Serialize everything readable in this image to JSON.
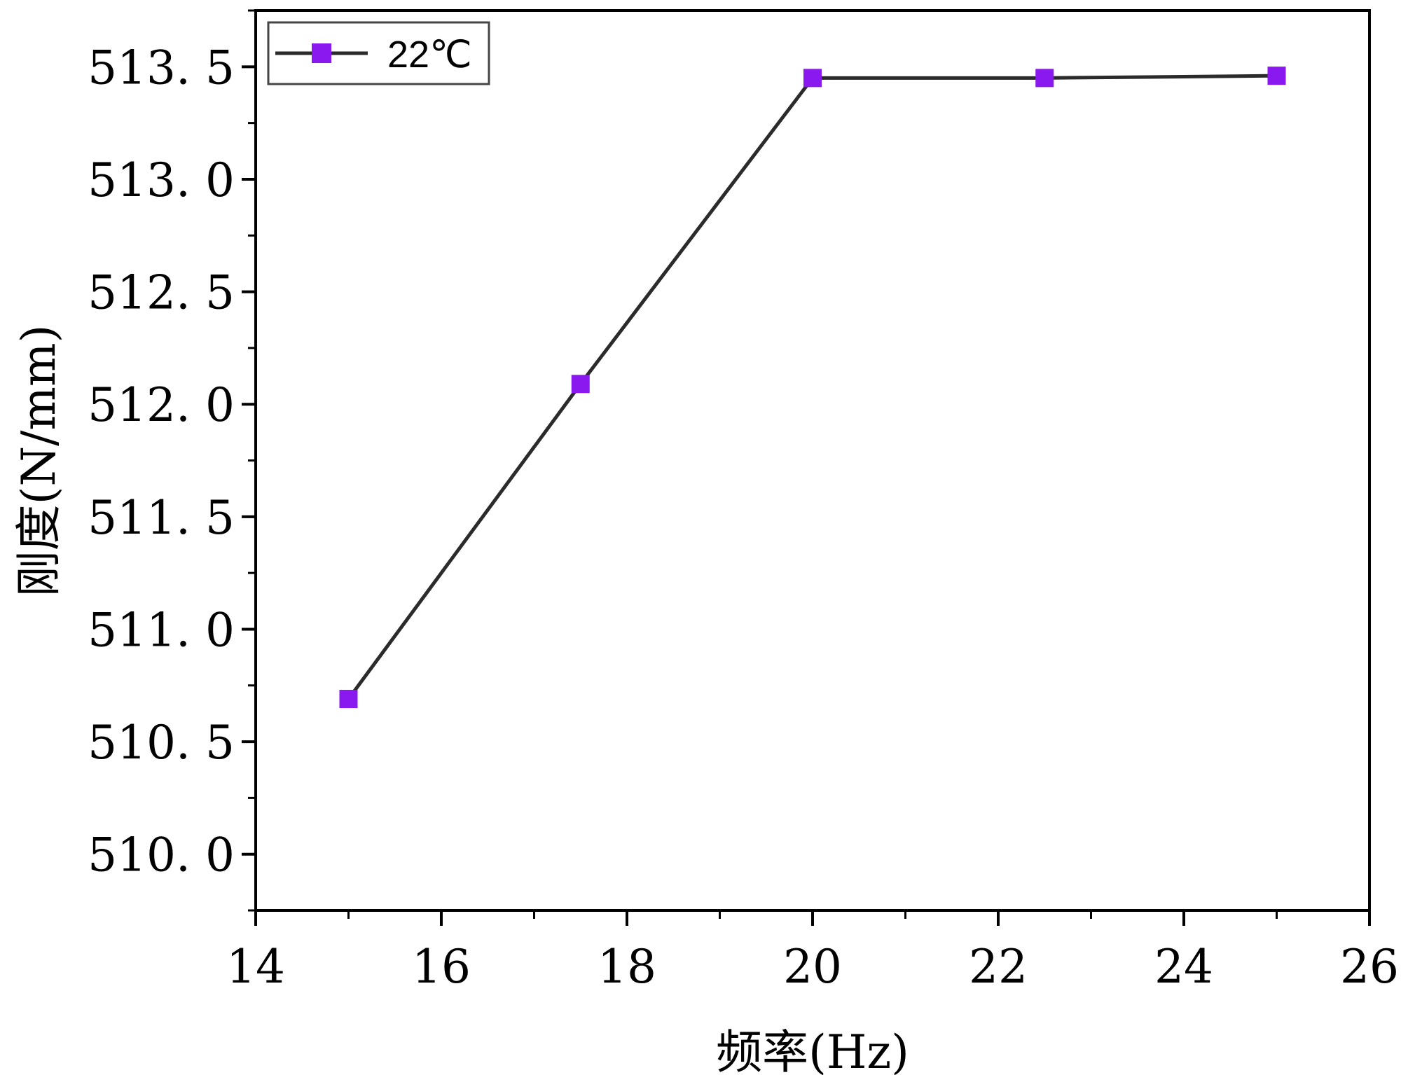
{
  "chart_data": {
    "type": "line",
    "title": "",
    "xlabel": "频率(Hz)",
    "ylabel": "刚度(N/mm)",
    "xlim": [
      14,
      26
    ],
    "ylim": [
      509.75,
      513.75
    ],
    "x_ticks": [
      14,
      16,
      18,
      20,
      22,
      24,
      26
    ],
    "y_ticks": [
      510.0,
      510.5,
      511.0,
      511.5,
      512.0,
      512.5,
      513.0,
      513.5
    ],
    "x_tick_labels": [
      "14",
      "16",
      "18",
      "20",
      "22",
      "24",
      "26"
    ],
    "y_tick_labels": [
      "510. 0",
      "510. 5",
      "511. 0",
      "511. 5",
      "512. 0",
      "512. 5",
      "513. 0",
      "513. 5"
    ],
    "grid": false,
    "legend_position": "top-left",
    "series": [
      {
        "name": "22℃",
        "x": [
          15,
          17.5,
          20,
          22.5,
          25
        ],
        "y": [
          510.69,
          512.09,
          513.45,
          513.45,
          513.46
        ],
        "marker": "square",
        "marker_color": "#8a19f0",
        "line_color": "#2b2b2b"
      }
    ]
  }
}
